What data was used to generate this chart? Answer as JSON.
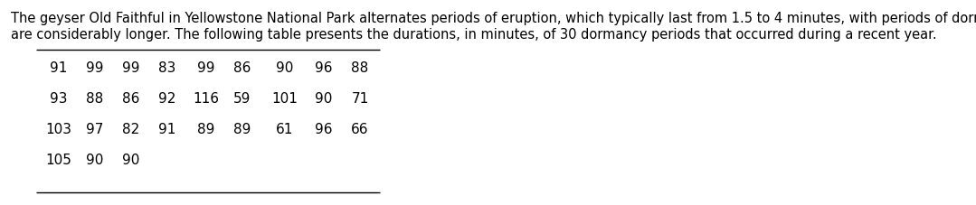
{
  "paragraph_line1": "The geyser Old Faithful in Yellowstone National Park alternates periods of eruption, which typically last from 1.5 to 4 minutes, with periods of dormancy, which",
  "paragraph_line2": "are considerably longer. The following table presents the durations, in minutes, of 30 dormancy periods that occurred during a recent year.",
  "table_rows": [
    [
      91,
      99,
      99,
      83,
      99,
      86,
      90,
      96,
      88
    ],
    [
      93,
      88,
      86,
      92,
      116,
      59,
      101,
      90,
      71
    ],
    [
      103,
      97,
      82,
      91,
      89,
      89,
      61,
      96,
      66
    ],
    [
      105,
      90,
      90
    ]
  ],
  "background_color": "#ffffff",
  "text_color": "#000000",
  "font_size_paragraph": 10.5,
  "font_size_table": 11.0,
  "line_color": "#000000"
}
